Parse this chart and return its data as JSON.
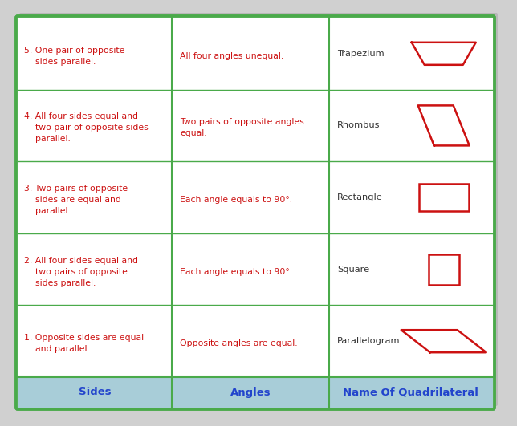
{
  "header": [
    "Sides",
    "Angles",
    "Name Of Quadrilateral"
  ],
  "header_bg": "#a8cdd8",
  "header_text_color": "#2244cc",
  "table_border_color": "#4aaa4a",
  "text_color": "#cc1111",
  "name_text_color": "#333333",
  "rows": [
    {
      "sides": "1. Opposite sides are equal\n    and parallel.",
      "angles": "Opposite angles are equal.",
      "name": "Parallelogram",
      "shape": "parallelogram"
    },
    {
      "sides": "2. All four sides equal and\n    two pairs of opposite\n    sides parallel.",
      "angles": "Each angle equals to 90°.",
      "name": "Square",
      "shape": "square"
    },
    {
      "sides": "3. Two pairs of opposite\n    sides are equal and\n    parallel.",
      "angles": "Each angle equals to 90°.",
      "name": "Rectangle",
      "shape": "rectangle"
    },
    {
      "sides": "4. All four sides equal and\n    two pair of opposite sides\n    parallel.",
      "angles": "Two pairs of opposite angles\nequal.",
      "name": "Rhombus",
      "shape": "rhombus"
    },
    {
      "sides": "5. One pair of opposite\n    sides parallel.",
      "angles": "All four angles unequal.",
      "name": "Trapezium",
      "shape": "trapezium"
    }
  ],
  "shape_color": "#cc1111",
  "fig_bg": "#d0d0d0",
  "shadow_color": "#b0b0b0"
}
